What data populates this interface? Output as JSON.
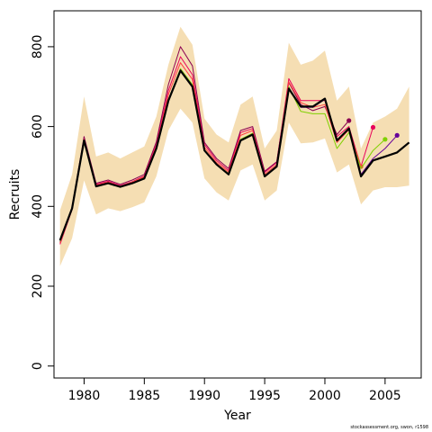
{
  "chart_data": {
    "type": "line",
    "title": "",
    "xlabel": "Year",
    "ylabel": "Recruits",
    "xlim": [
      1977.5,
      2008
    ],
    "ylim": [
      -30,
      890
    ],
    "xticks": [
      1980,
      1985,
      1990,
      1995,
      2000,
      2005
    ],
    "yticks": [
      0,
      200,
      400,
      600,
      800
    ],
    "x": [
      1978,
      1979,
      1980,
      1981,
      1982,
      1983,
      1984,
      1985,
      1986,
      1987,
      1988,
      1989,
      1990,
      1991,
      1992,
      1993,
      1994,
      1995,
      1996,
      1997,
      1998,
      1999,
      2000,
      2001,
      2002,
      2003,
      2004,
      2005,
      2006,
      2007
    ],
    "band": {
      "color": "#f5deb3",
      "upper": [
        390,
        480,
        675,
        525,
        535,
        520,
        535,
        550,
        625,
        755,
        850,
        805,
        620,
        580,
        560,
        655,
        675,
        545,
        590,
        810,
        755,
        765,
        790,
        665,
        700,
        545,
        610,
        625,
        645,
        700
      ],
      "lower": [
        250,
        320,
        465,
        380,
        395,
        388,
        398,
        410,
        475,
        590,
        645,
        610,
        470,
        435,
        415,
        490,
        505,
        415,
        440,
        610,
        558,
        560,
        570,
        485,
        505,
        405,
        440,
        448,
        448,
        452
      ]
    },
    "series": [
      {
        "color": "#000000",
        "width": 2.2,
        "x": [
          1978,
          1979,
          1980,
          1981,
          1982,
          1983,
          1984,
          1985,
          1986,
          1987,
          1988,
          1989,
          1990,
          1991,
          1992,
          1993,
          1994,
          1995,
          1996,
          1997,
          1998,
          1999,
          2000,
          2001,
          2002,
          2003,
          2004,
          2005,
          2006,
          2007
        ],
        "values": [
          315,
          395,
          565,
          450,
          458,
          449,
          458,
          470,
          545,
          665,
          740,
          700,
          540,
          505,
          480,
          565,
          580,
          475,
          500,
          695,
          650,
          650,
          670,
          565,
          595,
          475,
          515,
          525,
          535,
          560
        ]
      },
      {
        "color": "#e8005a",
        "width": 1,
        "x": [
          1978,
          1979,
          1980,
          1981,
          1982,
          1983,
          1984,
          1985,
          1986,
          1987,
          1988,
          1989,
          1990,
          1991,
          1992,
          1993,
          1994,
          1995,
          1996,
          1997,
          1998,
          1999,
          2000,
          2001,
          2002,
          2003,
          2004
        ],
        "values": [
          305,
          392,
          570,
          455,
          463,
          452,
          462,
          476,
          555,
          690,
          775,
          730,
          555,
          515,
          490,
          585,
          595,
          485,
          510,
          720,
          665,
          665,
          665,
          575,
          600,
          500,
          598
        ],
        "endpoint": true
      },
      {
        "color": "#8b0052",
        "width": 1,
        "x": [
          1978,
          1979,
          1980,
          1981,
          1982,
          1983,
          1984,
          1985,
          1986,
          1987,
          1988,
          1989,
          1990,
          1991,
          1992,
          1993,
          1994,
          1995,
          1996,
          1997,
          1998,
          1999,
          2000,
          2001,
          2002
        ],
        "values": [
          310,
          398,
          575,
          458,
          466,
          455,
          466,
          480,
          562,
          705,
          800,
          752,
          560,
          520,
          495,
          590,
          600,
          488,
          512,
          710,
          655,
          640,
          650,
          580,
          615
        ],
        "endpoint": true
      },
      {
        "color": "#ff4040",
        "width": 1,
        "x": [
          1978,
          1979,
          1980,
          1981,
          1982,
          1983,
          1984,
          1985,
          1986,
          1987,
          1988,
          1989,
          1990,
          1991,
          1992,
          1993,
          1994,
          1995,
          1996,
          1997,
          1998,
          1999,
          2000,
          2001,
          2002,
          2003
        ],
        "values": [
          308,
          394,
          568,
          453,
          461,
          450,
          461,
          474,
          551,
          680,
          760,
          718,
          548,
          510,
          486,
          578,
          590,
          480,
          505,
          712,
          660,
          648,
          655,
          560,
          592,
          500
        ],
        "endpoint": true
      },
      {
        "color": "#7fd000",
        "width": 1,
        "x": [
          1978,
          1979,
          1980,
          1981,
          1982,
          1983,
          1984,
          1985,
          1986,
          1987,
          1988,
          1989,
          1990,
          1991,
          1992,
          1993,
          1994,
          1995,
          1996,
          1997,
          1998,
          1999,
          2000,
          2001,
          2002,
          2003,
          2004,
          2005
        ],
        "values": [
          312,
          393,
          566,
          451,
          459,
          449,
          459,
          471,
          547,
          668,
          745,
          705,
          542,
          506,
          482,
          568,
          583,
          476,
          501,
          700,
          638,
          632,
          632,
          545,
          585,
          495,
          540,
          568
        ],
        "endpoint": true
      },
      {
        "color": "#660099",
        "width": 1,
        "x": [
          1978,
          1979,
          1980,
          1981,
          1982,
          1983,
          1984,
          1985,
          1986,
          1987,
          1988,
          1989,
          1990,
          1991,
          1992,
          1993,
          1994,
          1995,
          1996,
          1997,
          1998,
          1999,
          2000,
          2001,
          2002,
          2003,
          2004,
          2005,
          2006
        ],
        "values": [
          314,
          394,
          565,
          450,
          458,
          449,
          458,
          470,
          546,
          666,
          742,
          702,
          541,
          505,
          481,
          566,
          581,
          475,
          500,
          697,
          648,
          648,
          668,
          565,
          595,
          480,
          520,
          545,
          578
        ],
        "endpoint": true
      }
    ]
  },
  "credit": "stockassessment.org, swon, r1598"
}
